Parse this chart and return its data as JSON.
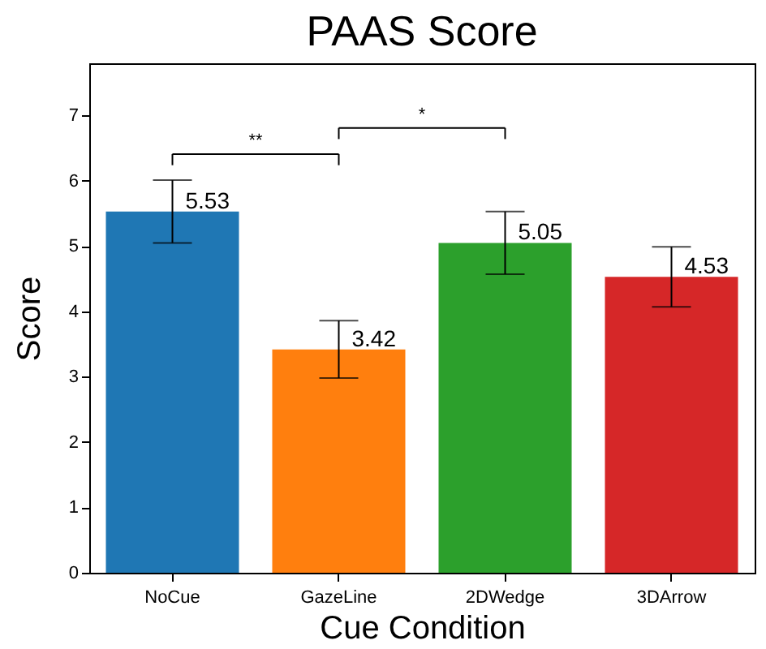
{
  "chart_data": {
    "type": "bar",
    "title": "PAAS Score",
    "xlabel": "Cue Condition",
    "ylabel": "Score",
    "categories": [
      "NoCue",
      "GazeLine",
      "2DWedge",
      "3DArrow"
    ],
    "values": [
      5.53,
      3.42,
      5.05,
      4.53
    ],
    "colors": [
      "#1f77b4",
      "#ff7f0e",
      "#2ca02c",
      "#d62728"
    ],
    "errors": [
      0.48,
      0.44,
      0.48,
      0.46
    ],
    "data_labels": true,
    "ylim": [
      0,
      7.8
    ],
    "yticks": [
      0,
      1,
      2,
      3,
      4,
      5,
      6,
      7
    ],
    "grid": false,
    "annotations": [
      "**",
      "*"
    ]
  }
}
